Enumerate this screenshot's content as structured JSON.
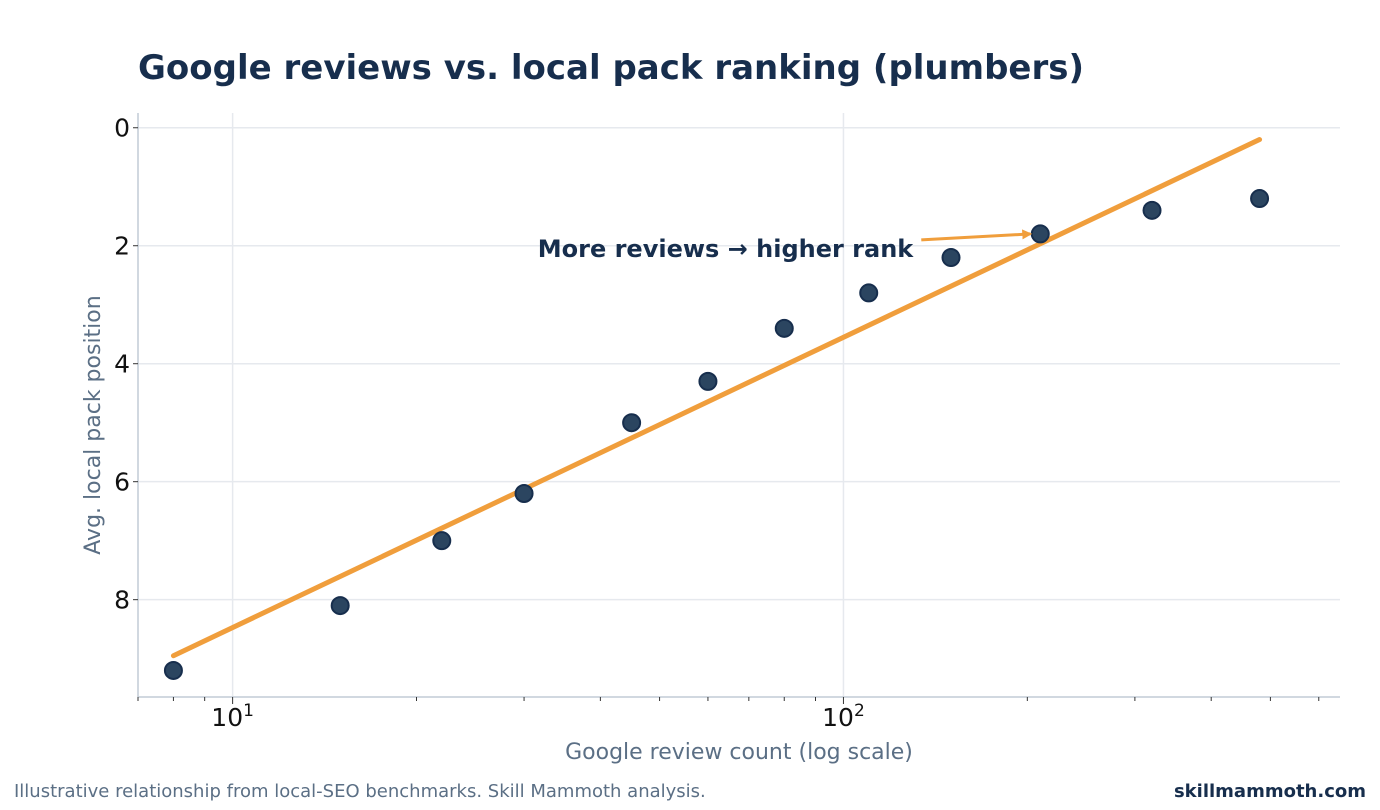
{
  "title": "Google reviews vs. local pack ranking (plumbers)",
  "footer": {
    "note": "Illustrative relationship from local-SEO benchmarks. Skill Mammoth analysis.",
    "brand": "skillmammoth.com"
  },
  "chart_data": {
    "type": "scatter",
    "title": "Google reviews vs. local pack ranking (plumbers)",
    "xlabel": "Google review count (log scale)",
    "ylabel": "Avg. local pack position",
    "x_scale": "log",
    "x_ticks": [
      {
        "value": 10,
        "base": "10",
        "exp": "1"
      },
      {
        "value": 100,
        "base": "10",
        "exp": "2"
      }
    ],
    "y_ticks": [
      0,
      2,
      4,
      6,
      8
    ],
    "y_inverted": true,
    "xlim": [
      7,
      650
    ],
    "ylim": [
      9.65,
      -0.25
    ],
    "grid": true,
    "points": [
      {
        "x": 8,
        "y": 9.2
      },
      {
        "x": 15,
        "y": 8.1
      },
      {
        "x": 22,
        "y": 7.0
      },
      {
        "x": 30,
        "y": 6.2
      },
      {
        "x": 45,
        "y": 5.0
      },
      {
        "x": 60,
        "y": 4.3
      },
      {
        "x": 80,
        "y": 3.4
      },
      {
        "x": 110,
        "y": 2.8
      },
      {
        "x": 150,
        "y": 2.2
      },
      {
        "x": 210,
        "y": 1.8
      },
      {
        "x": 320,
        "y": 1.4
      },
      {
        "x": 480,
        "y": 1.2
      }
    ],
    "trend_line": {
      "x": [
        8,
        480
      ],
      "y": [
        8.95,
        0.2
      ]
    },
    "annotation": {
      "text": "More reviews → higher rank",
      "target": {
        "x": 210,
        "y": 1.8
      }
    },
    "colors": {
      "point": "#2b4560",
      "point_edge": "#172e4d",
      "trend": "#f09e3c",
      "text": "#172e4d",
      "muted": "#5b6f85"
    }
  }
}
